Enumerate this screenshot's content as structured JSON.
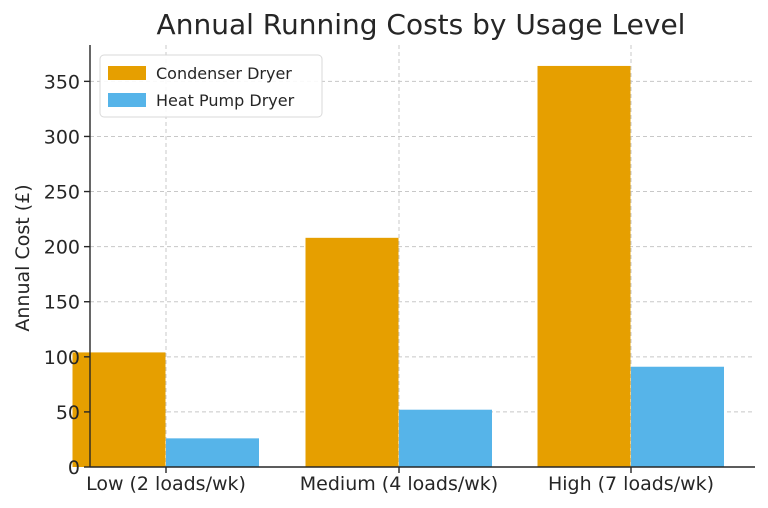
{
  "chart_data": {
    "type": "bar",
    "title": "Annual Running Costs by Usage Level",
    "xlabel": "",
    "ylabel": "Annual Cost (£)",
    "categories": [
      "Low (2 loads/wk)",
      "Medium (4 loads/wk)",
      "High (7 loads/wk)"
    ],
    "series": [
      {
        "name": "Condenser Dryer",
        "color": "#E69F00",
        "values": [
          104,
          208,
          364
        ]
      },
      {
        "name": "Heat Pump Dryer",
        "color": "#56B4E9",
        "values": [
          26,
          52,
          91
        ]
      }
    ],
    "ylim": [
      0,
      383
    ],
    "yticks": [
      0,
      50,
      100,
      150,
      200,
      250,
      300,
      350
    ],
    "grid": true,
    "legend_position": "top-left"
  }
}
